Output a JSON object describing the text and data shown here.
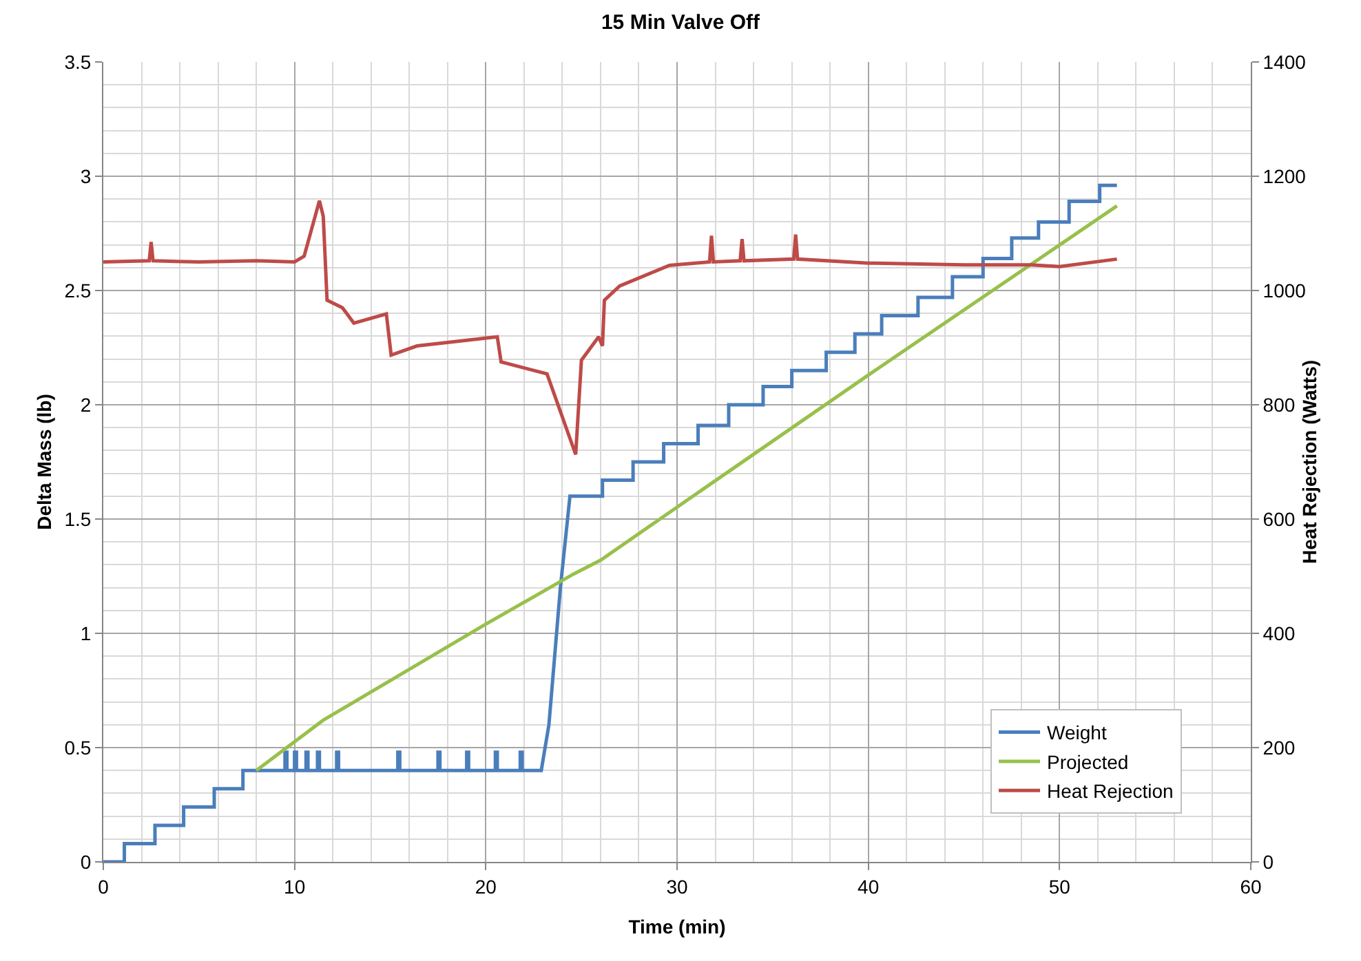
{
  "chart_data": {
    "type": "line",
    "title": "15 Min Valve Off",
    "xlabel": "Time (min)",
    "ylabel": "Delta Mass (lb)",
    "y2label": "Heat Rejection (Watts)",
    "xlim": [
      0,
      60
    ],
    "xticks": [
      0,
      10,
      20,
      30,
      40,
      50,
      60
    ],
    "ylim": [
      0,
      3.5
    ],
    "yticks": [
      0,
      0.5,
      1,
      1.5,
      2,
      2.5,
      3,
      3.5
    ],
    "y2lim": [
      0,
      1400
    ],
    "y2ticks": [
      0,
      200,
      400,
      600,
      800,
      1000,
      1200,
      1400
    ],
    "grid": true,
    "legend": "bottom right",
    "marker": "none",
    "line_style": "solid",
    "series": [
      {
        "name": "Weight",
        "color": "#4a7ebb",
        "x": [
          0,
          1.1,
          1.1,
          2.7,
          2.7,
          4.2,
          4.2,
          5.8,
          5.8,
          7.3,
          7.3,
          9.5,
          9.5,
          9.6,
          9.6,
          10.0,
          10.0,
          10.1,
          10.1,
          10.6,
          10.6,
          10.7,
          10.7,
          11.2,
          11.2,
          11.3,
          11.3,
          12.2,
          12.2,
          12.3,
          12.3,
          15.4,
          15.4,
          15.5,
          15.5,
          17.5,
          17.5,
          17.6,
          17.6,
          19.0,
          19.0,
          19.1,
          19.1,
          20.5,
          20.5,
          20.6,
          20.6,
          21.8,
          21.8,
          21.9,
          21.9,
          22.9,
          23.3,
          23.9,
          24.4,
          26.1,
          26.1,
          27.7,
          27.7,
          29.3,
          29.3,
          31.1,
          31.1,
          32.7,
          32.7,
          34.5,
          34.5,
          36.0,
          36.0,
          37.8,
          37.8,
          39.3,
          39.3,
          40.7,
          40.7,
          42.6,
          42.6,
          44.4,
          44.4,
          46.0,
          46.0,
          47.5,
          47.5,
          48.9,
          48.9,
          50.5,
          50.5,
          52.1,
          52.1,
          53.0
        ],
        "values": [
          0,
          0,
          0.08,
          0.08,
          0.16,
          0.16,
          0.24,
          0.24,
          0.32,
          0.32,
          0.4,
          0.4,
          0.48,
          0.48,
          0.4,
          0.4,
          0.48,
          0.48,
          0.4,
          0.4,
          0.48,
          0.48,
          0.4,
          0.4,
          0.48,
          0.48,
          0.4,
          0.4,
          0.48,
          0.48,
          0.4,
          0.4,
          0.48,
          0.48,
          0.4,
          0.4,
          0.48,
          0.48,
          0.4,
          0.4,
          0.48,
          0.48,
          0.4,
          0.4,
          0.48,
          0.48,
          0.4,
          0.4,
          0.48,
          0.48,
          0.4,
          0.4,
          0.6,
          1.2,
          1.6,
          1.6,
          1.67,
          1.67,
          1.75,
          1.75,
          1.83,
          1.83,
          1.91,
          1.91,
          2.0,
          2.0,
          2.08,
          2.08,
          2.15,
          2.15,
          2.23,
          2.23,
          2.31,
          2.31,
          2.39,
          2.39,
          2.47,
          2.47,
          2.56,
          2.56,
          2.64,
          2.64,
          2.73,
          2.73,
          2.8,
          2.8,
          2.89,
          2.89,
          2.96,
          2.96
        ]
      },
      {
        "name": "Projected",
        "color": "#98c04c",
        "x": [
          8.0,
          11.5,
          20.0,
          24.6,
          26.0,
          31.0,
          40.0,
          53.0
        ],
        "values": [
          0.4,
          0.62,
          1.04,
          1.26,
          1.32,
          1.61,
          2.13,
          2.87
        ]
      },
      {
        "name": "Heat Rejection",
        "color": "#be4b48",
        "axis": "y2",
        "x": [
          0,
          2.4,
          2.5,
          2.6,
          5,
          8,
          10,
          10.5,
          11.3,
          11.5,
          11.7,
          12.5,
          13.1,
          14.8,
          15.05,
          16.4,
          20.6,
          20.8,
          23.2,
          24.7,
          25.0,
          25.9,
          26.1,
          26.2,
          27.0,
          29.6,
          31.7,
          31.8,
          31.9,
          33.3,
          33.4,
          33.5,
          36.1,
          36.2,
          36.3,
          40,
          45,
          48.5,
          50,
          53.0
        ],
        "values": [
          1050,
          1052,
          1085,
          1052,
          1050,
          1052,
          1050,
          1060,
          1157,
          1130,
          983,
          970,
          943,
          959,
          887,
          903,
          919,
          875,
          854,
          713,
          878,
          919,
          903,
          983,
          1008,
          1044,
          1050,
          1096,
          1050,
          1052,
          1090,
          1052,
          1055,
          1098,
          1055,
          1048,
          1045,
          1045,
          1042,
          1055
        ]
      }
    ]
  }
}
